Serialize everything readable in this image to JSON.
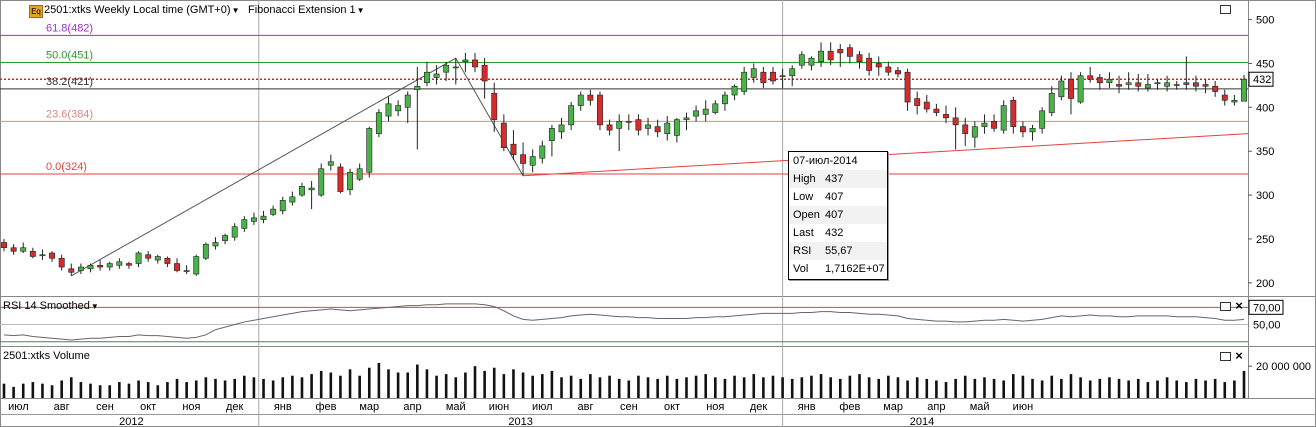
{
  "header": {
    "symbol_badge": "Eq",
    "symbol_title": "2501:xtks Weekly Local time (GMT+0)",
    "study_title": "Fibonacci Extension 1"
  },
  "rsi_pane": {
    "title": "RSI 14 Smoothed"
  },
  "volume_pane": {
    "title": "2501:xtks Volume"
  },
  "tooltip": {
    "date": "07-июл-2014",
    "rows": [
      {
        "label": "High",
        "value": "437"
      },
      {
        "label": "Low",
        "value": "407"
      },
      {
        "label": "Open",
        "value": "407"
      },
      {
        "label": "Last",
        "value": "432"
      },
      {
        "label": "RSI",
        "value": "55,67"
      },
      {
        "label": "Vol",
        "value": "1,7162E+07"
      }
    ]
  },
  "colors": {
    "up": "#49b249",
    "down": "#d52b2b",
    "fib_purple": "#9b32c8",
    "fib_green": "#2e9a2e",
    "fib_red": "#e34141"
  },
  "chart_data": [
    {
      "type": "candlestick",
      "title": "2501:xtks Weekly Local time (GMT+0)",
      "y_ticks": [
        200,
        250,
        300,
        350,
        400,
        450,
        500
      ],
      "ylim": [
        185,
        520
      ],
      "last_price_label": "432",
      "fib_levels": [
        {
          "label": "61.8(482)",
          "value": 482,
          "color": "#9b32c8"
        },
        {
          "label": "50.0(451)",
          "value": 451,
          "color": "#2e9a2e"
        },
        {
          "label": "38.2(421)",
          "value": 421,
          "color": "#333333"
        },
        {
          "label": "23.6(384)",
          "value": 384,
          "color": "#d88888"
        },
        {
          "label": "0.0(324)",
          "value": 324,
          "color": "#e34141"
        }
      ],
      "candles": [
        [
          246,
          250,
          236,
          240
        ],
        [
          240,
          244,
          232,
          236
        ],
        [
          236,
          246,
          234,
          240
        ],
        [
          236,
          240,
          228,
          230
        ],
        [
          232,
          238,
          226,
          232
        ],
        [
          234,
          236,
          224,
          228
        ],
        [
          228,
          232,
          214,
          218
        ],
        [
          216,
          222,
          208,
          212
        ],
        [
          214,
          222,
          210,
          218
        ],
        [
          216,
          222,
          212,
          220
        ],
        [
          220,
          226,
          214,
          218
        ],
        [
          218,
          224,
          214,
          222
        ],
        [
          220,
          228,
          216,
          224
        ],
        [
          222,
          224,
          216,
          220
        ],
        [
          222,
          236,
          218,
          234
        ],
        [
          232,
          236,
          224,
          228
        ],
        [
          226,
          232,
          222,
          230
        ],
        [
          228,
          230,
          218,
          222
        ],
        [
          222,
          228,
          212,
          214
        ],
        [
          214,
          220,
          210,
          214
        ],
        [
          210,
          232,
          208,
          230
        ],
        [
          228,
          246,
          226,
          244
        ],
        [
          242,
          252,
          238,
          246
        ],
        [
          248,
          256,
          244,
          254
        ],
        [
          252,
          268,
          248,
          264
        ],
        [
          262,
          276,
          258,
          272
        ],
        [
          270,
          280,
          266,
          274
        ],
        [
          272,
          282,
          268,
          276
        ],
        [
          278,
          288,
          276,
          284
        ],
        [
          282,
          298,
          278,
          294
        ],
        [
          292,
          304,
          288,
          298
        ],
        [
          300,
          314,
          298,
          310
        ],
        [
          306,
          316,
          284,
          308
        ],
        [
          300,
          336,
          298,
          330
        ],
        [
          334,
          346,
          328,
          338
        ],
        [
          332,
          336,
          302,
          304
        ],
        [
          306,
          330,
          300,
          326
        ],
        [
          318,
          336,
          316,
          330
        ],
        [
          326,
          378,
          320,
          376
        ],
        [
          370,
          398,
          366,
          394
        ],
        [
          390,
          412,
          384,
          404
        ],
        [
          396,
          408,
          390,
          402
        ],
        [
          400,
          418,
          382,
          414
        ],
        [
          420,
          446,
          352,
          424
        ],
        [
          428,
          452,
          424,
          440
        ],
        [
          434,
          448,
          426,
          438
        ],
        [
          440,
          452,
          430,
          448
        ],
        [
          446,
          456,
          426,
          446
        ],
        [
          452,
          462,
          440,
          454
        ],
        [
          454,
          462,
          440,
          446
        ],
        [
          448,
          456,
          410,
          430
        ],
        [
          416,
          428,
          372,
          386
        ],
        [
          382,
          392,
          350,
          354
        ],
        [
          358,
          374,
          340,
          346
        ],
        [
          346,
          360,
          322,
          336
        ],
        [
          334,
          352,
          326,
          344
        ],
        [
          342,
          362,
          336,
          356
        ],
        [
          362,
          380,
          344,
          376
        ],
        [
          372,
          388,
          364,
          380
        ],
        [
          380,
          406,
          374,
          402
        ],
        [
          402,
          418,
          396,
          414
        ],
        [
          414,
          420,
          402,
          408
        ],
        [
          414,
          418,
          374,
          380
        ],
        [
          380,
          386,
          368,
          374
        ],
        [
          376,
          392,
          350,
          384
        ],
        [
          384,
          392,
          374,
          384
        ],
        [
          386,
          392,
          368,
          374
        ],
        [
          376,
          388,
          368,
          380
        ],
        [
          378,
          386,
          366,
          372
        ],
        [
          370,
          390,
          362,
          382
        ],
        [
          368,
          388,
          360,
          386
        ],
        [
          386,
          394,
          374,
          388
        ],
        [
          390,
          402,
          384,
          396
        ],
        [
          392,
          408,
          384,
          398
        ],
        [
          394,
          408,
          392,
          404
        ],
        [
          404,
          418,
          396,
          414
        ],
        [
          414,
          426,
          408,
          424
        ],
        [
          418,
          446,
          414,
          440
        ],
        [
          434,
          450,
          428,
          444
        ],
        [
          440,
          446,
          422,
          428
        ],
        [
          440,
          446,
          426,
          430
        ],
        [
          436,
          444,
          422,
          436
        ],
        [
          436,
          448,
          424,
          444
        ],
        [
          448,
          464,
          444,
          460
        ],
        [
          448,
          458,
          442,
          456
        ],
        [
          452,
          474,
          446,
          464
        ],
        [
          464,
          474,
          448,
          454
        ],
        [
          466,
          472,
          446,
          462
        ],
        [
          468,
          472,
          450,
          458
        ],
        [
          460,
          464,
          444,
          452
        ],
        [
          456,
          462,
          436,
          442
        ],
        [
          450,
          458,
          436,
          446
        ],
        [
          446,
          452,
          436,
          440
        ],
        [
          442,
          446,
          434,
          438
        ],
        [
          440,
          444,
          396,
          406
        ],
        [
          410,
          418,
          392,
          402
        ],
        [
          406,
          414,
          394,
          398
        ],
        [
          398,
          404,
          390,
          394
        ],
        [
          392,
          402,
          382,
          388
        ],
        [
          388,
          400,
          352,
          380
        ],
        [
          380,
          388,
          356,
          370
        ],
        [
          366,
          384,
          354,
          378
        ],
        [
          378,
          392,
          370,
          382
        ],
        [
          384,
          392,
          372,
          376
        ],
        [
          374,
          408,
          370,
          402
        ],
        [
          408,
          412,
          370,
          378
        ],
        [
          378,
          384,
          366,
          372
        ],
        [
          372,
          380,
          362,
          376
        ],
        [
          376,
          400,
          370,
          396
        ],
        [
          394,
          424,
          390,
          416
        ],
        [
          412,
          436,
          408,
          430
        ],
        [
          432,
          440,
          392,
          410
        ],
        [
          406,
          440,
          404,
          436
        ],
        [
          436,
          446,
          428,
          432
        ],
        [
          434,
          438,
          420,
          428
        ],
        [
          428,
          440,
          422,
          432
        ],
        [
          426,
          436,
          416,
          424
        ],
        [
          426,
          440,
          420,
          428
        ],
        [
          428,
          438,
          418,
          424
        ],
        [
          422,
          438,
          418,
          426
        ],
        [
          428,
          432,
          420,
          428
        ],
        [
          424,
          436,
          418,
          428
        ],
        [
          426,
          430,
          420,
          426
        ],
        [
          428,
          458,
          420,
          426
        ],
        [
          428,
          436,
          418,
          424
        ],
        [
          426,
          432,
          416,
          424
        ],
        [
          424,
          430,
          412,
          418
        ],
        [
          414,
          420,
          402,
          408
        ],
        [
          406,
          414,
          402,
          408
        ],
        [
          407,
          437,
          407,
          432
        ]
      ]
    },
    {
      "type": "line",
      "title": "RSI 14 Smoothed",
      "levels": [
        {
          "label": "70,00",
          "value": 70
        },
        {
          "label": "50,00",
          "value": 50
        },
        {
          "value": 30
        }
      ],
      "ylim": [
        25,
        82
      ],
      "series": [
        {
          "values": [
            38,
            37,
            38,
            36,
            35,
            34,
            33,
            32,
            33,
            34,
            34,
            35,
            36,
            36,
            38,
            37,
            37,
            36,
            35,
            34,
            35,
            38,
            44,
            47,
            50,
            53,
            55,
            57,
            59,
            61,
            63,
            65,
            66,
            67,
            68,
            67,
            66,
            67,
            68,
            69,
            70,
            71,
            72,
            72,
            73,
            73,
            74,
            74,
            74,
            74,
            73,
            71,
            66,
            60,
            56,
            55,
            56,
            57,
            58,
            60,
            61,
            62,
            61,
            60,
            59,
            59,
            58,
            58,
            57,
            57,
            57,
            57,
            58,
            58,
            59,
            59,
            60,
            61,
            62,
            63,
            63,
            63,
            63,
            64,
            64,
            65,
            65,
            64,
            64,
            63,
            62,
            62,
            61,
            60,
            57,
            56,
            55,
            54,
            54,
            53,
            53,
            54,
            55,
            55,
            56,
            55,
            54,
            55,
            56,
            58,
            60,
            59,
            60,
            61,
            60,
            60,
            59,
            59,
            60,
            60,
            60,
            60,
            59,
            59,
            59,
            58,
            57,
            55,
            55,
            56
          ]
        }
      ]
    },
    {
      "type": "bar",
      "title": "2501:xtks Volume",
      "y_ticks": [
        "20 000 000"
      ],
      "ylim": [
        0,
        27000000
      ],
      "values": [
        9,
        7,
        9,
        10,
        9,
        8,
        11,
        13,
        10,
        9,
        8,
        8,
        10,
        9,
        11,
        10,
        8,
        10,
        12,
        10,
        11,
        13,
        12,
        11,
        12,
        14,
        13,
        12,
        11,
        13,
        14,
        13,
        15,
        17,
        16,
        14,
        18,
        14,
        19,
        22,
        18,
        16,
        16,
        21,
        18,
        14,
        15,
        13,
        16,
        20,
        17,
        19,
        15,
        18,
        16,
        14,
        15,
        17,
        13,
        14,
        12,
        15,
        13,
        14,
        12,
        11,
        14,
        13,
        12,
        14,
        12,
        13,
        14,
        15,
        13,
        12,
        14,
        13,
        15,
        13,
        14,
        13,
        12,
        13,
        14,
        15,
        13,
        12,
        14,
        15,
        13,
        12,
        14,
        13,
        11,
        13,
        12,
        11,
        10,
        12,
        14,
        12,
        13,
        12,
        11,
        15,
        14,
        12,
        11,
        14,
        12,
        15,
        13,
        11,
        12,
        13,
        12,
        11,
        12,
        10,
        11,
        13,
        11,
        10,
        12,
        11,
        12,
        10,
        11,
        17
      ],
      "value_scale": 1000000
    }
  ],
  "x_axis": {
    "months": [
      {
        "label": "июл",
        "week": 1.5
      },
      {
        "label": "авг",
        "week": 6
      },
      {
        "label": "сен",
        "week": 10.5
      },
      {
        "label": "окт",
        "week": 15
      },
      {
        "label": "ноя",
        "week": 19.5
      },
      {
        "label": "дек",
        "week": 24
      },
      {
        "label": "янв",
        "week": 29
      },
      {
        "label": "фев",
        "week": 33.5
      },
      {
        "label": "мар",
        "week": 38
      },
      {
        "label": "апр",
        "week": 42.5
      },
      {
        "label": "май",
        "week": 47
      },
      {
        "label": "июн",
        "week": 51.5
      },
      {
        "label": "июл",
        "week": 56
      },
      {
        "label": "авг",
        "week": 60.5
      },
      {
        "label": "сен",
        "week": 65
      },
      {
        "label": "окт",
        "week": 69.5
      },
      {
        "label": "ноя",
        "week": 74
      },
      {
        "label": "дек",
        "week": 78.5
      },
      {
        "label": "янв",
        "week": 83.5
      },
      {
        "label": "фев",
        "week": 88
      },
      {
        "label": "мар",
        "week": 92.5
      },
      {
        "label": "апр",
        "week": 97
      },
      {
        "label": "май",
        "week": 101.5
      },
      {
        "label": "июн",
        "week": 106
      }
    ],
    "years": [
      {
        "label": "2012",
        "start": 0,
        "end": 26.5
      },
      {
        "label": "2013",
        "start": 26.5,
        "end": 81
      },
      {
        "label": "2014",
        "start": 81,
        "end": 110
      }
    ]
  }
}
